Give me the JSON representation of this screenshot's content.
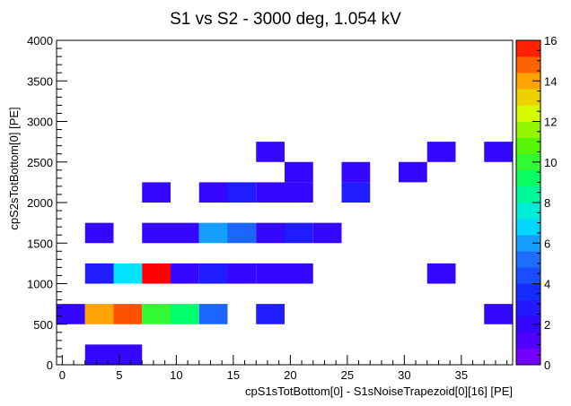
{
  "chart_data": {
    "type": "heatmap",
    "title": "S1 vs S2 - 3000 deg, 1.054 kV",
    "xlabel": "cpS1sTotBottom[0] - S1sNoiseTrapezoid[0][16] [PE]",
    "ylabel": "cpS2sTotBottom[0] [PE]",
    "xlim": [
      -0.5,
      39.5
    ],
    "ylim": [
      0,
      4000
    ],
    "x_bin_width": 2.5,
    "y_bin_width": 250,
    "x_ticks": [
      "0",
      "5",
      "10",
      "15",
      "20",
      "25",
      "30",
      "35"
    ],
    "y_ticks": [
      "0",
      "500",
      "1000",
      "1500",
      "2000",
      "2500",
      "3000",
      "3500",
      "4000"
    ],
    "z_range": [
      0,
      16
    ],
    "z_ticks": [
      "0",
      "2",
      "4",
      "6",
      "8",
      "10",
      "12",
      "14",
      "16"
    ],
    "cells": [
      {
        "x": 3.25,
        "y": 125,
        "z": 2
      },
      {
        "x": 5.75,
        "y": 125,
        "z": 2
      },
      {
        "x": 0.75,
        "y": 625,
        "z": 2
      },
      {
        "x": 3.25,
        "y": 625,
        "z": 14
      },
      {
        "x": 5.75,
        "y": 625,
        "z": 15
      },
      {
        "x": 8.25,
        "y": 625,
        "z": 10
      },
      {
        "x": 10.75,
        "y": 625,
        "z": 9
      },
      {
        "x": 13.25,
        "y": 625,
        "z": 5
      },
      {
        "x": 18.25,
        "y": 625,
        "z": 3
      },
      {
        "x": 38.25,
        "y": 625,
        "z": 2
      },
      {
        "x": 3.25,
        "y": 1125,
        "z": 3
      },
      {
        "x": 5.75,
        "y": 1125,
        "z": 7
      },
      {
        "x": 8.25,
        "y": 1125,
        "z": 16
      },
      {
        "x": 10.75,
        "y": 1125,
        "z": 2
      },
      {
        "x": 13.25,
        "y": 1125,
        "z": 3
      },
      {
        "x": 15.75,
        "y": 1125,
        "z": 2
      },
      {
        "x": 18.25,
        "y": 1125,
        "z": 2
      },
      {
        "x": 20.75,
        "y": 1125,
        "z": 2
      },
      {
        "x": 33.25,
        "y": 1125,
        "z": 2
      },
      {
        "x": 3.25,
        "y": 1625,
        "z": 2
      },
      {
        "x": 8.25,
        "y": 1625,
        "z": 2
      },
      {
        "x": 10.75,
        "y": 1625,
        "z": 2
      },
      {
        "x": 13.25,
        "y": 1625,
        "z": 6
      },
      {
        "x": 15.75,
        "y": 1625,
        "z": 5
      },
      {
        "x": 18.25,
        "y": 1625,
        "z": 2
      },
      {
        "x": 20.75,
        "y": 1625,
        "z": 3
      },
      {
        "x": 23.25,
        "y": 1625,
        "z": 2
      },
      {
        "x": 8.25,
        "y": 2125,
        "z": 2
      },
      {
        "x": 13.25,
        "y": 2125,
        "z": 2
      },
      {
        "x": 15.75,
        "y": 2125,
        "z": 3
      },
      {
        "x": 18.25,
        "y": 2125,
        "z": 2
      },
      {
        "x": 20.75,
        "y": 2125,
        "z": 2
      },
      {
        "x": 25.75,
        "y": 2125,
        "z": 3
      },
      {
        "x": 20.75,
        "y": 2375,
        "z": 2
      },
      {
        "x": 25.75,
        "y": 2375,
        "z": 2
      },
      {
        "x": 30.75,
        "y": 2375,
        "z": 2
      },
      {
        "x": 18.25,
        "y": 2625,
        "z": 2
      },
      {
        "x": 33.25,
        "y": 2625,
        "z": 2
      },
      {
        "x": 38.25,
        "y": 2625,
        "z": 2
      }
    ]
  }
}
